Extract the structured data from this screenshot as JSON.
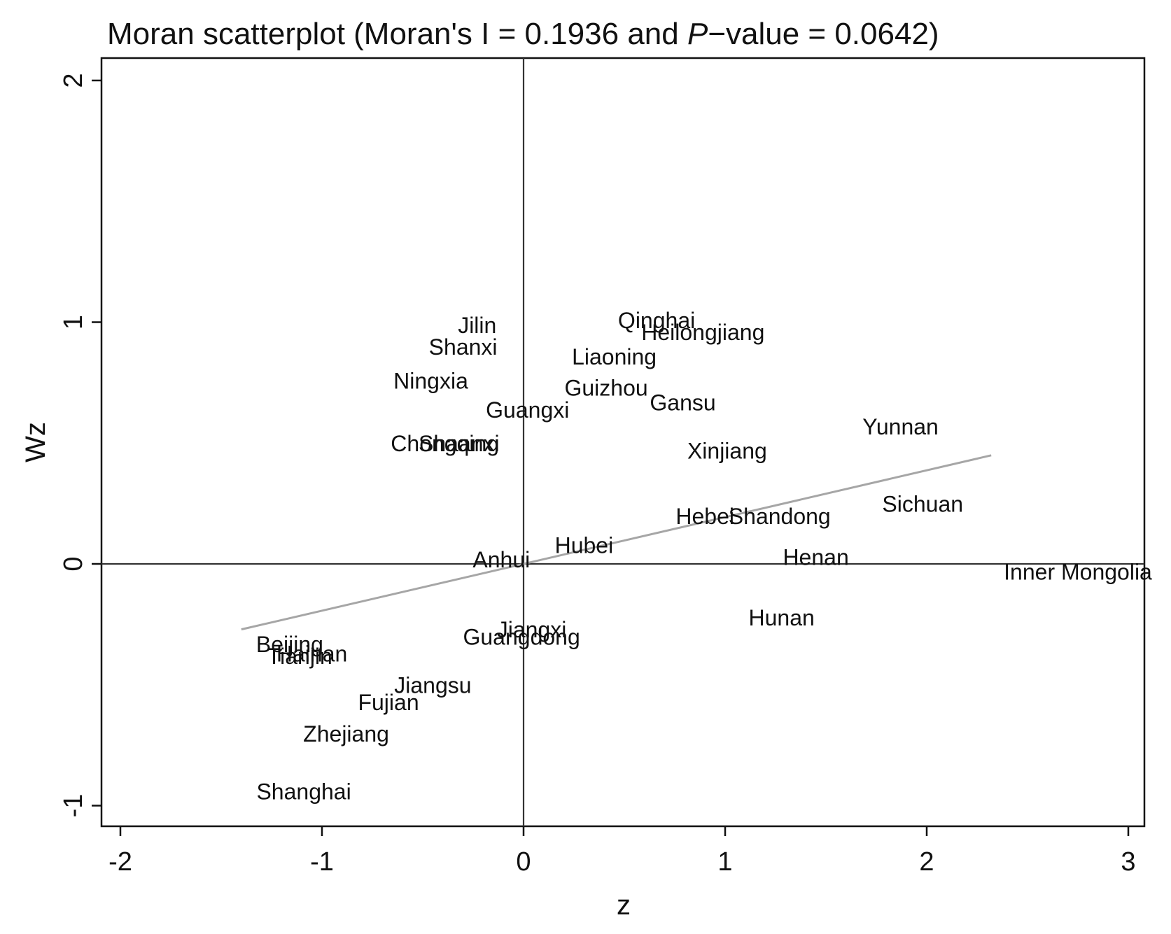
{
  "chart_data": {
    "type": "scatter",
    "title_parts": {
      "before": "Moran scatterplot (Moran's I = 0.1936 and ",
      "italic": "P",
      "after": "−value = 0.0642)"
    },
    "xlabel": "z",
    "ylabel": "Wz",
    "xlim": [
      -2.1,
      3.1
    ],
    "ylim": [
      -1.08,
      2.08
    ],
    "xticks": [
      -2,
      -1,
      0,
      1,
      2,
      3
    ],
    "yticks": [
      -1,
      0,
      1,
      2
    ],
    "grid": false,
    "reference_lines": {
      "x": 0,
      "y": 0
    },
    "fit_line": {
      "slope": 0.1936,
      "x_range": [
        -1.4,
        2.32
      ],
      "color": "#a6a6a6"
    },
    "points": [
      {
        "label": "Qinghai",
        "x": 0.66,
        "y": 1.0
      },
      {
        "label": "Heilongjiang",
        "x": 0.89,
        "y": 0.95
      },
      {
        "label": "Jilin",
        "x": -0.23,
        "y": 0.98
      },
      {
        "label": "Shanxi",
        "x": -0.3,
        "y": 0.89
      },
      {
        "label": "Liaoning",
        "x": 0.45,
        "y": 0.85
      },
      {
        "label": "Ningxia",
        "x": -0.46,
        "y": 0.75
      },
      {
        "label": "Guizhou",
        "x": 0.41,
        "y": 0.72
      },
      {
        "label": "Gansu",
        "x": 0.79,
        "y": 0.66
      },
      {
        "label": "Guangxi",
        "x": 0.02,
        "y": 0.63
      },
      {
        "label": "Yunnan",
        "x": 1.87,
        "y": 0.56
      },
      {
        "label": "Chongqing",
        "x": -0.39,
        "y": 0.49
      },
      {
        "label": "Shaanxi",
        "x": -0.32,
        "y": 0.49
      },
      {
        "label": "Xinjiang",
        "x": 1.01,
        "y": 0.46
      },
      {
        "label": "Sichuan",
        "x": 1.98,
        "y": 0.24
      },
      {
        "label": "Hebei",
        "x": 0.9,
        "y": 0.19
      },
      {
        "label": "Shandong",
        "x": 1.27,
        "y": 0.19
      },
      {
        "label": "Hubei",
        "x": 0.3,
        "y": 0.07
      },
      {
        "label": "Anhui",
        "x": -0.11,
        "y": 0.01
      },
      {
        "label": "Henan",
        "x": 1.45,
        "y": 0.02
      },
      {
        "label": "Inner Mongolia",
        "x": 2.75,
        "y": -0.04
      },
      {
        "label": "Hunan",
        "x": 1.28,
        "y": -0.23
      },
      {
        "label": "Jiangxi",
        "x": 0.04,
        "y": -0.28
      },
      {
        "label": "Guangdong",
        "x": -0.01,
        "y": -0.31
      },
      {
        "label": "Beijing",
        "x": -1.16,
        "y": -0.34
      },
      {
        "label": "Hainan",
        "x": -1.05,
        "y": -0.38
      },
      {
        "label": "Tianjin",
        "x": -1.11,
        "y": -0.39
      },
      {
        "label": "Jiangsu",
        "x": -0.45,
        "y": -0.51
      },
      {
        "label": "Fujian",
        "x": -0.67,
        "y": -0.58
      },
      {
        "label": "Zhejiang",
        "x": -0.88,
        "y": -0.71
      },
      {
        "label": "Shanghai",
        "x": -1.09,
        "y": -0.95
      }
    ]
  }
}
